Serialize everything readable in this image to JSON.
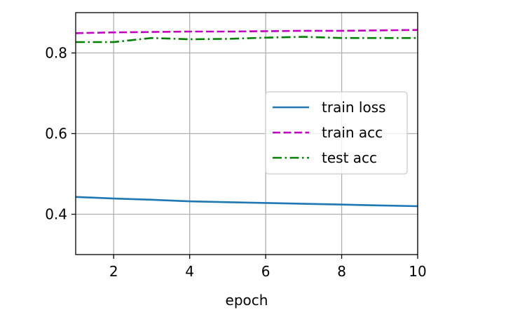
{
  "chart_data": {
    "type": "line",
    "xlabel": "epoch",
    "ylabel": "",
    "xlim": [
      1,
      10
    ],
    "ylim": [
      0.3,
      0.9
    ],
    "xticks": [
      2,
      4,
      6,
      8,
      10
    ],
    "yticks": [
      0.4,
      0.6,
      0.8
    ],
    "xtick_labels": [
      "2",
      "4",
      "6",
      "8",
      "10"
    ],
    "ytick_labels": [
      "0.4",
      "0.6",
      "0.8"
    ],
    "grid": true,
    "legend_position": "center-right",
    "x": [
      1,
      2,
      3,
      4,
      5,
      6,
      7,
      8,
      9,
      10
    ],
    "series": [
      {
        "name": "train loss",
        "color": "#1f77b4",
        "style": "solid",
        "values": [
          0.443,
          0.439,
          0.436,
          0.432,
          0.43,
          0.428,
          0.426,
          0.424,
          0.422,
          0.42
        ]
      },
      {
        "name": "train acc",
        "color": "#bf00bf",
        "style": "dashed",
        "values": [
          0.849,
          0.851,
          0.852,
          0.853,
          0.853,
          0.854,
          0.855,
          0.855,
          0.856,
          0.857
        ]
      },
      {
        "name": "test acc",
        "color": "#008000",
        "style": "dashdot",
        "values": [
          0.827,
          0.827,
          0.837,
          0.834,
          0.835,
          0.838,
          0.84,
          0.837,
          0.837,
          0.837
        ]
      }
    ]
  }
}
